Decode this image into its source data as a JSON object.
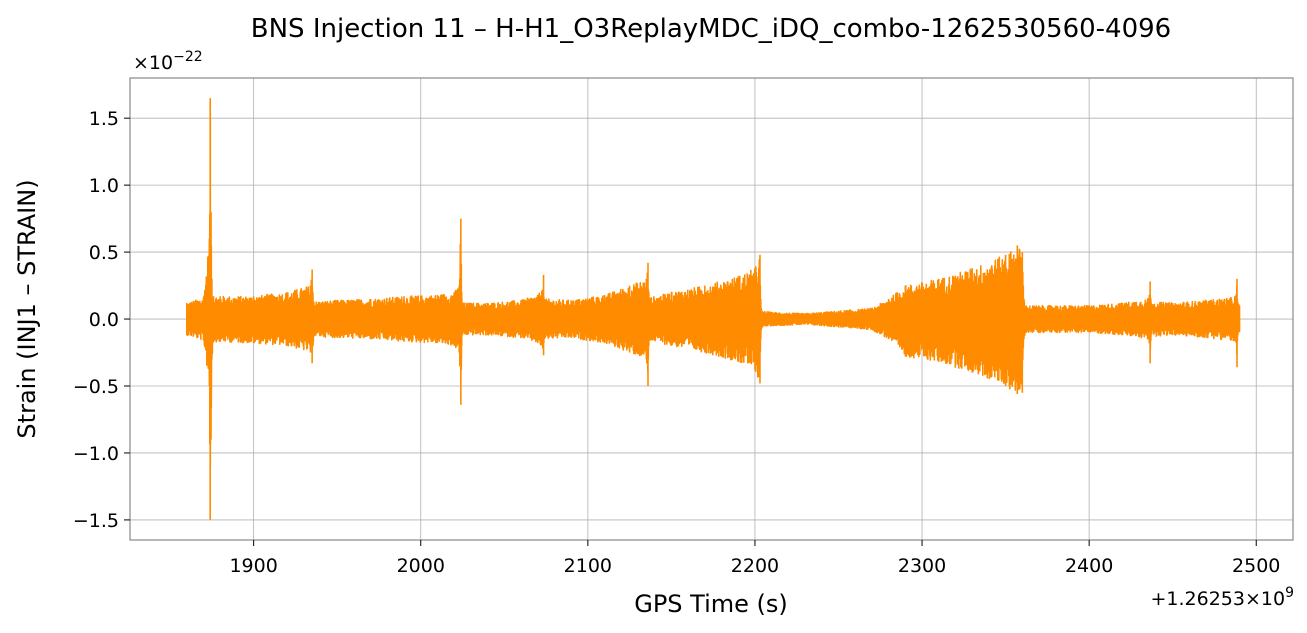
{
  "chart_data": {
    "type": "line",
    "title": "BNS Injection 11 – H-H1_O3ReplayMDC_iDQ_combo-1262530560-4096",
    "xlabel": "GPS Time (s)",
    "ylabel": "Strain (INJ1 – STRAIN)",
    "x_offset_text": "+1.26253",
    "x_offset_mult": "×10",
    "x_offset_exp": "9",
    "y_scale_base": "×10",
    "y_scale_exp": "−22",
    "xlim": [
      1826,
      2522
    ],
    "ylim": [
      -1.65,
      1.8
    ],
    "x_ticks": [
      1900,
      2000,
      2100,
      2200,
      2300,
      2400,
      2500
    ],
    "x_tick_labels": [
      "1900",
      "2000",
      "2100",
      "2200",
      "2300",
      "2400",
      "2500"
    ],
    "y_ticks": [
      -1.5,
      -1.0,
      -0.5,
      0.0,
      0.5,
      1.0,
      1.5
    ],
    "y_tick_labels": [
      "−1.5",
      "−1.0",
      "−0.5",
      "0.0",
      "0.5",
      "1.0",
      "1.5"
    ],
    "grid": true,
    "color": "#ff8c00",
    "series": [
      {
        "x": [
          1860,
          1870,
          1873.5,
          1874,
          1874.5,
          1875,
          1876,
          1880,
          1900,
          1920,
          1934,
          1935,
          1935.5,
          1936,
          1950,
          1970,
          1990,
          2010,
          2020,
          2023,
          2024,
          2024.5,
          2025,
          2040,
          2060,
          2070,
          2073,
          2073.5,
          2074,
          2090,
          2110,
          2125,
          2135,
          2136,
          2136.5,
          2137,
          2150,
          2170,
          2190,
          2200,
          2203,
          2203.5,
          2204,
          2210,
          2230,
          2250,
          2270,
          2280,
          2290,
          2310,
          2330,
          2350,
          2357,
          2360,
          2361,
          2362,
          2380,
          2400,
          2420,
          2435,
          2436,
          2436.5,
          2437,
          2450,
          2470,
          2485,
          2488,
          2488.5,
          2489,
          2490
        ],
        "upper": [
          0.12,
          0.16,
          0.6,
          1.65,
          0.8,
          0.3,
          0.17,
          0.17,
          0.17,
          0.2,
          0.25,
          0.37,
          0.2,
          0.13,
          0.14,
          0.15,
          0.17,
          0.18,
          0.2,
          0.25,
          0.75,
          0.2,
          0.12,
          0.12,
          0.14,
          0.18,
          0.22,
          0.33,
          0.15,
          0.14,
          0.18,
          0.25,
          0.3,
          0.42,
          0.2,
          0.16,
          0.2,
          0.25,
          0.32,
          0.38,
          0.48,
          0.15,
          0.06,
          0.05,
          0.04,
          0.06,
          0.08,
          0.15,
          0.25,
          0.3,
          0.38,
          0.48,
          0.55,
          0.5,
          0.15,
          0.1,
          0.1,
          0.1,
          0.12,
          0.15,
          0.18,
          0.28,
          0.13,
          0.12,
          0.14,
          0.16,
          0.18,
          0.3,
          0.12,
          0.1
        ],
        "lower": [
          -0.12,
          -0.16,
          -0.5,
          -1.5,
          -0.9,
          -0.3,
          -0.17,
          -0.17,
          -0.18,
          -0.2,
          -0.25,
          -0.33,
          -0.2,
          -0.13,
          -0.14,
          -0.15,
          -0.17,
          -0.18,
          -0.2,
          -0.25,
          -0.64,
          -0.2,
          -0.12,
          -0.12,
          -0.14,
          -0.18,
          -0.22,
          -0.27,
          -0.15,
          -0.14,
          -0.18,
          -0.25,
          -0.3,
          -0.5,
          -0.2,
          -0.16,
          -0.2,
          -0.25,
          -0.32,
          -0.38,
          -0.48,
          -0.15,
          -0.06,
          -0.05,
          -0.04,
          -0.06,
          -0.08,
          -0.15,
          -0.28,
          -0.32,
          -0.4,
          -0.5,
          -0.56,
          -0.55,
          -0.15,
          -0.1,
          -0.1,
          -0.1,
          -0.12,
          -0.15,
          -0.18,
          -0.33,
          -0.13,
          -0.12,
          -0.14,
          -0.16,
          -0.18,
          -0.36,
          -0.12,
          -0.1
        ]
      }
    ]
  }
}
